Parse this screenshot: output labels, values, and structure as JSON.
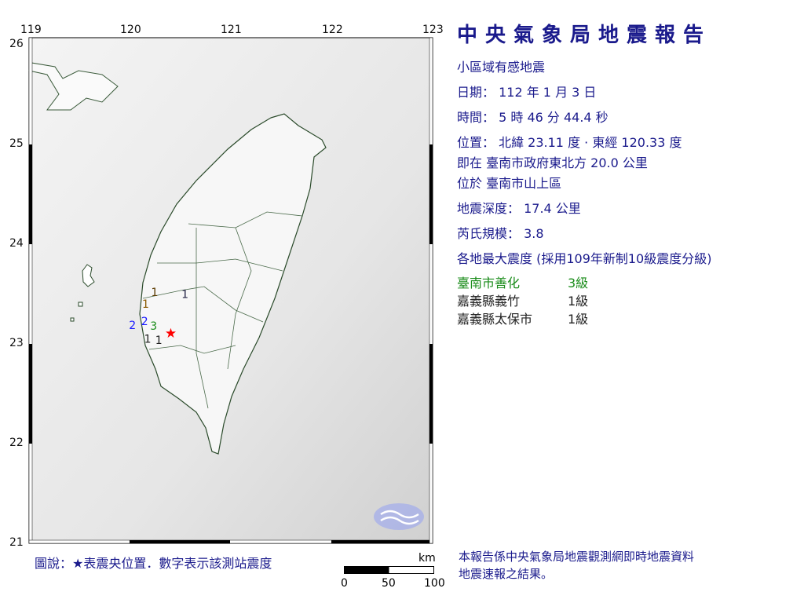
{
  "report": {
    "title": "中央氣象局地震報告",
    "type": "小區域有感地震",
    "date_line": "日期： 112 年 1 月 3 日",
    "time_line": "時間： 5 時 46 分 44.4 秒",
    "position_line": "位置： 北緯 23.11 度 · 東經 120.33 度",
    "relative_line": "即在 臺南市政府東北方 20.0 公里",
    "located_line": "位於 臺南市山上區",
    "depth_line": "地震深度： 17.4 公里",
    "magnitude_line": "芮氏規模： 3.8",
    "intensity_header": "各地最大震度 (採用109年新制10級震度分級)",
    "stations": [
      {
        "name": "臺南市善化",
        "level": "3級",
        "color": "#1a8c1a"
      },
      {
        "name": "嘉義縣義竹",
        "level": "1級",
        "color": "#222222"
      },
      {
        "name": "嘉義縣太保市",
        "level": "1級",
        "color": "#222222"
      }
    ],
    "footnote_1": "本報告係中央氣象局地震觀測網即時地震資料",
    "footnote_2": "地震速報之結果。"
  },
  "map": {
    "lon_ticks": [
      "119",
      "120",
      "121",
      "122",
      "123"
    ],
    "lat_ticks": [
      "26",
      "25",
      "24",
      "23",
      "22",
      "21"
    ],
    "legend": "圖說：★表震央位置．數字表示該測站震度",
    "scale_unit": "km",
    "scale_labels": [
      "0",
      "50",
      "100"
    ],
    "epicenter": {
      "lat": 23.11,
      "lon": 120.33,
      "color": "#ff0000"
    },
    "station_marks": [
      {
        "text": "1",
        "lon": 120.28,
        "lat": 23.52,
        "color": "#5a3a00"
      },
      {
        "text": "1",
        "lon": 120.58,
        "lat": 23.5,
        "color": "#222244"
      },
      {
        "text": "1",
        "lon": 120.19,
        "lat": 23.4,
        "color": "#8a5a00"
      },
      {
        "text": "2",
        "lon": 120.06,
        "lat": 23.19,
        "color": "#1a1aff"
      },
      {
        "text": "2",
        "lon": 120.18,
        "lat": 23.23,
        "color": "#1a1aff"
      },
      {
        "text": "3",
        "lon": 120.27,
        "lat": 23.18,
        "color": "#1a8c1a"
      },
      {
        "text": "1",
        "lon": 120.21,
        "lat": 23.05,
        "color": "#222222"
      },
      {
        "text": "1",
        "lon": 120.32,
        "lat": 23.04,
        "color": "#222222"
      }
    ]
  }
}
